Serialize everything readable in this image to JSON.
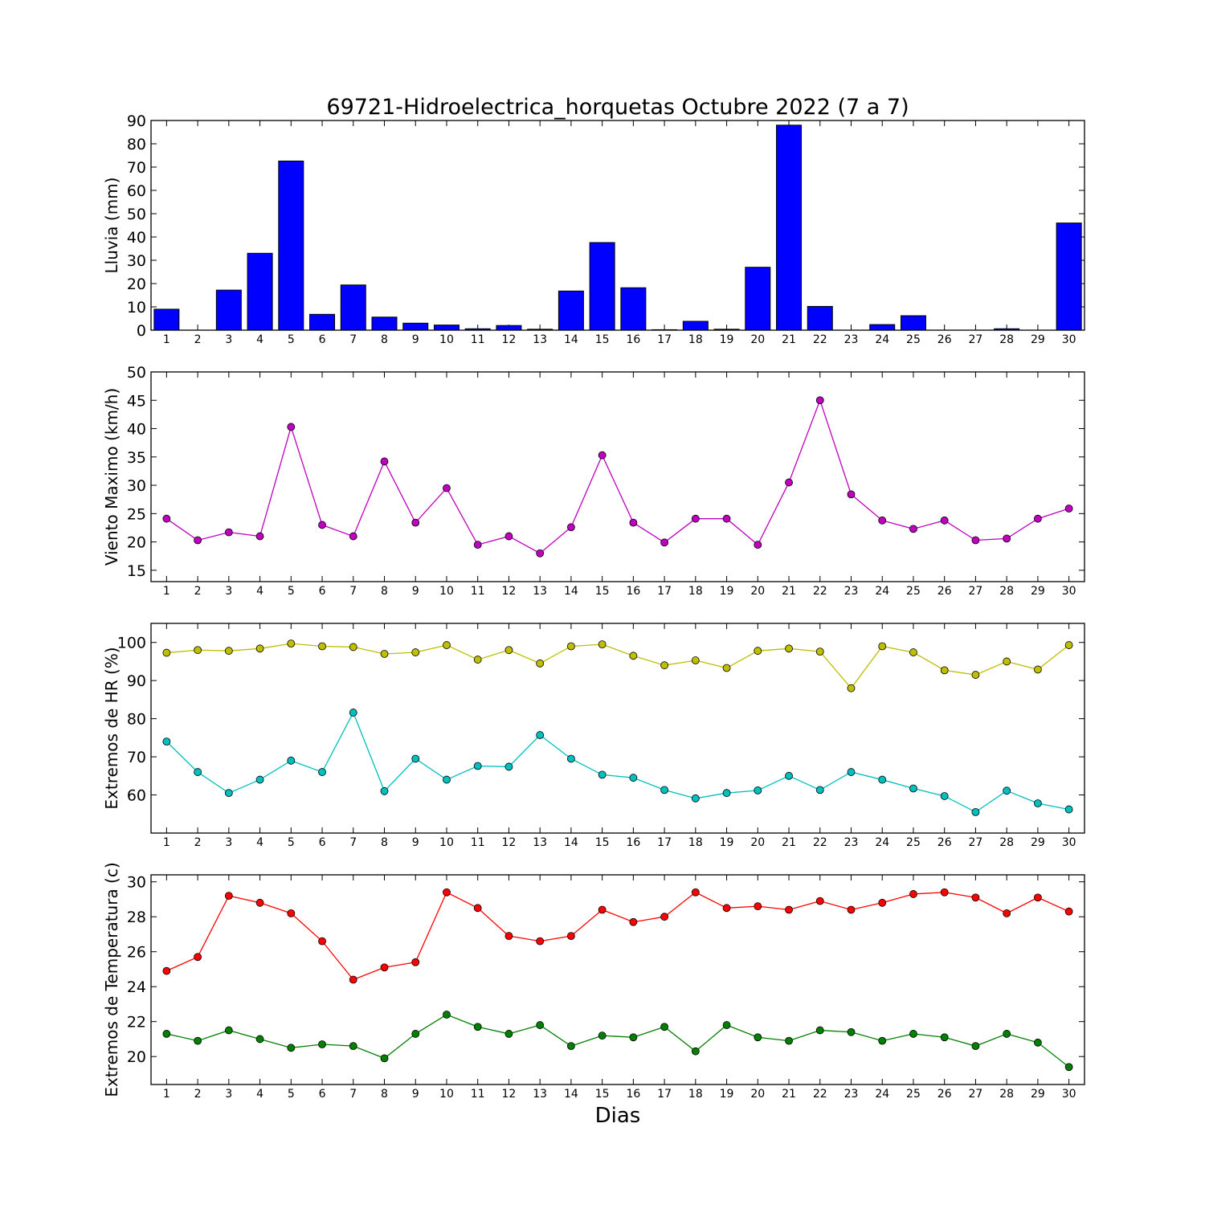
{
  "figure": {
    "title": "69721-Hidroelectrica_horquetas Octubre 2022  (7 a 7)",
    "xlabel": "Dias"
  },
  "chart_data": [
    {
      "type": "bar",
      "ylabel": "Lluvia (mm)",
      "categories": [
        "1",
        "2",
        "3",
        "4",
        "5",
        "6",
        "7",
        "8",
        "9",
        "10",
        "11",
        "12",
        "13",
        "14",
        "15",
        "16",
        "17",
        "18",
        "19",
        "20",
        "21",
        "22",
        "23",
        "24",
        "25",
        "26",
        "27",
        "28",
        "29",
        "30"
      ],
      "ylim": [
        0,
        90
      ],
      "yticks": [
        0,
        10,
        20,
        30,
        40,
        50,
        60,
        70,
        80,
        90
      ],
      "color": "#0000ff",
      "series": [
        {
          "values": [
            9.0,
            0.0,
            17.2,
            33.0,
            72.6,
            6.8,
            19.4,
            5.6,
            3.0,
            2.2,
            0.6,
            2.0,
            0.4,
            16.8,
            37.6,
            18.2,
            0.2,
            3.8,
            0.4,
            27.0,
            88.0,
            10.2,
            0.0,
            2.4,
            6.2,
            0.0,
            0.0,
            0.6,
            0.0,
            46.0
          ]
        }
      ]
    },
    {
      "type": "line",
      "ylabel": "Viento Maximo (km/h)",
      "x": [
        1,
        2,
        3,
        4,
        5,
        6,
        7,
        8,
        9,
        10,
        11,
        12,
        13,
        14,
        15,
        16,
        17,
        18,
        19,
        20,
        21,
        22,
        23,
        24,
        25,
        26,
        27,
        28,
        29,
        30
      ],
      "ylim": [
        13,
        50
      ],
      "yticks": [
        15,
        20,
        25,
        30,
        35,
        40,
        45,
        50
      ],
      "series": [
        {
          "color": "#bf00bf",
          "values": [
            24.1,
            20.3,
            21.7,
            21.0,
            40.3,
            23.0,
            21.0,
            34.2,
            23.4,
            29.5,
            19.5,
            21.0,
            18.0,
            22.6,
            35.3,
            23.4,
            19.9,
            24.1,
            24.1,
            19.5,
            30.5,
            45.0,
            28.4,
            23.8,
            22.3,
            23.8,
            20.3,
            20.6,
            24.1,
            25.9
          ]
        }
      ]
    },
    {
      "type": "line",
      "ylabel": "Extremos de HR (%)",
      "x": [
        1,
        2,
        3,
        4,
        5,
        6,
        7,
        8,
        9,
        10,
        11,
        12,
        13,
        14,
        15,
        16,
        17,
        18,
        19,
        20,
        21,
        22,
        23,
        24,
        25,
        26,
        27,
        28,
        29,
        30
      ],
      "ylim": [
        50,
        105
      ],
      "yticks": [
        60,
        70,
        80,
        90,
        100
      ],
      "series": [
        {
          "color": "#bfbf00",
          "values": [
            97.3,
            98.0,
            97.8,
            98.4,
            99.7,
            99.0,
            98.8,
            97.0,
            97.4,
            99.3,
            95.5,
            98.0,
            94.5,
            99.0,
            99.5,
            96.5,
            94.0,
            95.3,
            93.3,
            97.8,
            98.4,
            97.6,
            88.0,
            99.0,
            97.4,
            92.7,
            91.5,
            95.0,
            92.9,
            99.3
          ]
        },
        {
          "color": "#00bfbf",
          "values": [
            74.0,
            66.0,
            60.5,
            64.0,
            69.0,
            66.0,
            81.6,
            61.0,
            69.5,
            64.0,
            67.6,
            67.4,
            75.7,
            69.5,
            65.3,
            64.5,
            61.3,
            59.1,
            60.5,
            61.2,
            65.0,
            61.3,
            66.0,
            64.0,
            61.7,
            59.7,
            55.5,
            61.1,
            57.8,
            56.2
          ]
        }
      ]
    },
    {
      "type": "line",
      "ylabel": "Extremos de Temperatura (c)",
      "x": [
        1,
        2,
        3,
        4,
        5,
        6,
        7,
        8,
        9,
        10,
        11,
        12,
        13,
        14,
        15,
        16,
        17,
        18,
        19,
        20,
        21,
        22,
        23,
        24,
        25,
        26,
        27,
        28,
        29,
        30
      ],
      "ylim": [
        18.4,
        30.4
      ],
      "yticks": [
        20,
        22,
        24,
        26,
        28,
        30
      ],
      "series": [
        {
          "color": "#ff0000",
          "values": [
            24.9,
            25.7,
            29.2,
            28.8,
            28.2,
            26.6,
            24.4,
            25.1,
            25.4,
            29.4,
            28.5,
            26.9,
            26.6,
            26.9,
            28.4,
            27.7,
            28.0,
            29.4,
            28.5,
            28.6,
            28.4,
            28.9,
            28.4,
            28.8,
            29.3,
            29.4,
            29.1,
            28.2,
            29.1,
            28.3
          ]
        },
        {
          "color": "#008000",
          "values": [
            21.3,
            20.9,
            21.5,
            21.0,
            20.5,
            20.7,
            20.6,
            19.9,
            21.3,
            22.4,
            21.7,
            21.3,
            21.8,
            20.6,
            21.2,
            21.1,
            21.7,
            20.3,
            21.8,
            21.1,
            20.9,
            21.5,
            21.4,
            20.9,
            21.3,
            21.1,
            20.6,
            21.3,
            20.8,
            19.4
          ]
        }
      ]
    }
  ]
}
